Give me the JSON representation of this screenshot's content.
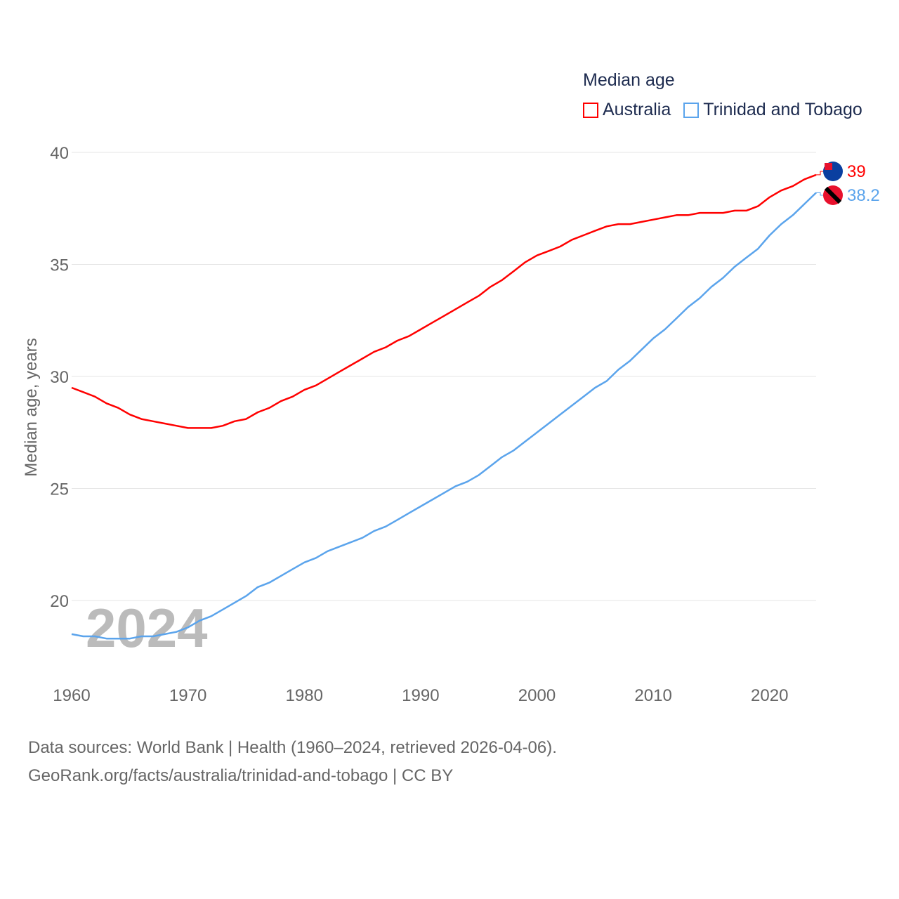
{
  "chart_data": {
    "type": "line",
    "title": "Median age",
    "ylabel": "Median age, years",
    "xlabel": "",
    "xlim": [
      1960,
      2024
    ],
    "ylim": [
      17,
      40
    ],
    "yticks": [
      20,
      25,
      30,
      35,
      40
    ],
    "xticks": [
      1960,
      1970,
      1980,
      1990,
      2000,
      2010,
      2020
    ],
    "grid": true,
    "legend_position": "top-right",
    "watermark_year": "2024",
    "x": [
      1960,
      1961,
      1962,
      1963,
      1964,
      1965,
      1966,
      1967,
      1968,
      1969,
      1970,
      1971,
      1972,
      1973,
      1974,
      1975,
      1976,
      1977,
      1978,
      1979,
      1980,
      1981,
      1982,
      1983,
      1984,
      1985,
      1986,
      1987,
      1988,
      1989,
      1990,
      1991,
      1992,
      1993,
      1994,
      1995,
      1996,
      1997,
      1998,
      1999,
      2000,
      2001,
      2002,
      2003,
      2004,
      2005,
      2006,
      2007,
      2008,
      2009,
      2010,
      2011,
      2012,
      2013,
      2014,
      2015,
      2016,
      2017,
      2018,
      2019,
      2020,
      2021,
      2022,
      2023,
      2024
    ],
    "series": [
      {
        "name": "Australia",
        "color": "#ff0000",
        "end_label": "39",
        "values": [
          29.5,
          29.3,
          29.1,
          28.8,
          28.6,
          28.3,
          28.1,
          28.0,
          27.9,
          27.8,
          27.7,
          27.7,
          27.7,
          27.8,
          28.0,
          28.1,
          28.4,
          28.6,
          28.9,
          29.1,
          29.4,
          29.6,
          29.9,
          30.2,
          30.5,
          30.8,
          31.1,
          31.3,
          31.6,
          31.8,
          32.1,
          32.4,
          32.7,
          33.0,
          33.3,
          33.6,
          34.0,
          34.3,
          34.7,
          35.1,
          35.4,
          35.6,
          35.8,
          36.1,
          36.3,
          36.5,
          36.7,
          36.8,
          36.8,
          36.9,
          37.0,
          37.1,
          37.2,
          37.2,
          37.3,
          37.3,
          37.3,
          37.4,
          37.4,
          37.6,
          38.0,
          38.3,
          38.5,
          38.8,
          39.0
        ]
      },
      {
        "name": "Trinidad and Tobago",
        "color": "#5ba4ec",
        "end_label": "38.2",
        "values": [
          18.5,
          18.4,
          18.4,
          18.3,
          18.3,
          18.3,
          18.4,
          18.4,
          18.5,
          18.6,
          18.8,
          19.1,
          19.3,
          19.6,
          19.9,
          20.2,
          20.6,
          20.8,
          21.1,
          21.4,
          21.7,
          21.9,
          22.2,
          22.4,
          22.6,
          22.8,
          23.1,
          23.3,
          23.6,
          23.9,
          24.2,
          24.5,
          24.8,
          25.1,
          25.3,
          25.6,
          26.0,
          26.4,
          26.7,
          27.1,
          27.5,
          27.9,
          28.3,
          28.7,
          29.1,
          29.5,
          29.8,
          30.3,
          30.7,
          31.2,
          31.7,
          32.1,
          32.6,
          33.1,
          33.5,
          34.0,
          34.4,
          34.9,
          35.3,
          35.7,
          36.3,
          36.8,
          37.2,
          37.7,
          38.2
        ]
      }
    ]
  },
  "footer": {
    "line1": "Data sources: World Bank | Health (1960–2024, retrieved 2026-04-06).",
    "line2": "GeoRank.org/facts/australia/trinidad-and-tobago | CC BY"
  }
}
